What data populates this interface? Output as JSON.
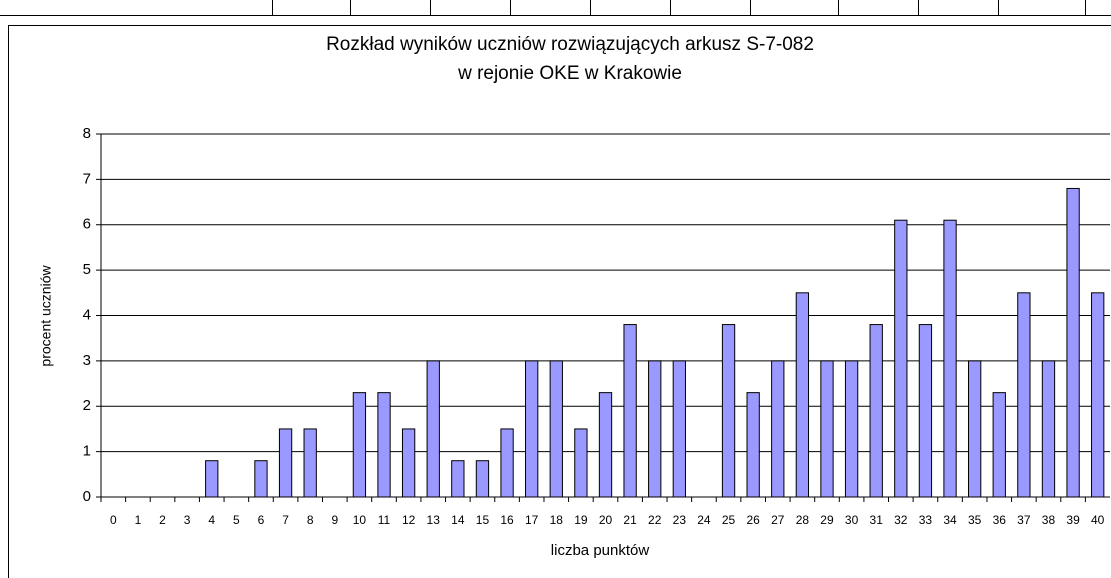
{
  "chart_data": {
    "type": "bar",
    "title": [
      "Rozkład wyników uczniów rozwiązujących arkusz S-7-082",
      "w rejonie OKE w Krakowie"
    ],
    "x_label": "liczba punktów",
    "y_label": "procent uczniów",
    "categories": [
      "0",
      "1",
      "2",
      "3",
      "4",
      "5",
      "6",
      "7",
      "8",
      "9",
      "10",
      "11",
      "12",
      "13",
      "14",
      "15",
      "16",
      "17",
      "18",
      "19",
      "20",
      "21",
      "22",
      "23",
      "24",
      "25",
      "26",
      "27",
      "28",
      "29",
      "30",
      "31",
      "32",
      "33",
      "34",
      "35",
      "36",
      "37",
      "38",
      "39",
      "40"
    ],
    "values": [
      0,
      0,
      0,
      0,
      0.8,
      0,
      0.8,
      1.5,
      1.5,
      0,
      2.3,
      2.3,
      1.5,
      3.0,
      0.8,
      0.8,
      1.5,
      3.0,
      3.0,
      1.5,
      2.3,
      3.8,
      3.0,
      3.0,
      0,
      3.8,
      2.3,
      3.0,
      4.5,
      3.0,
      3.0,
      3.8,
      6.1,
      3.8,
      6.1,
      3.0,
      2.3,
      4.5,
      3.0,
      6.8,
      4.5
    ],
    "color": "#9999ff",
    "ylim": [
      0,
      8
    ],
    "yticks": [
      0,
      1,
      2,
      3,
      4,
      5,
      6,
      7,
      8
    ],
    "grid": true
  }
}
